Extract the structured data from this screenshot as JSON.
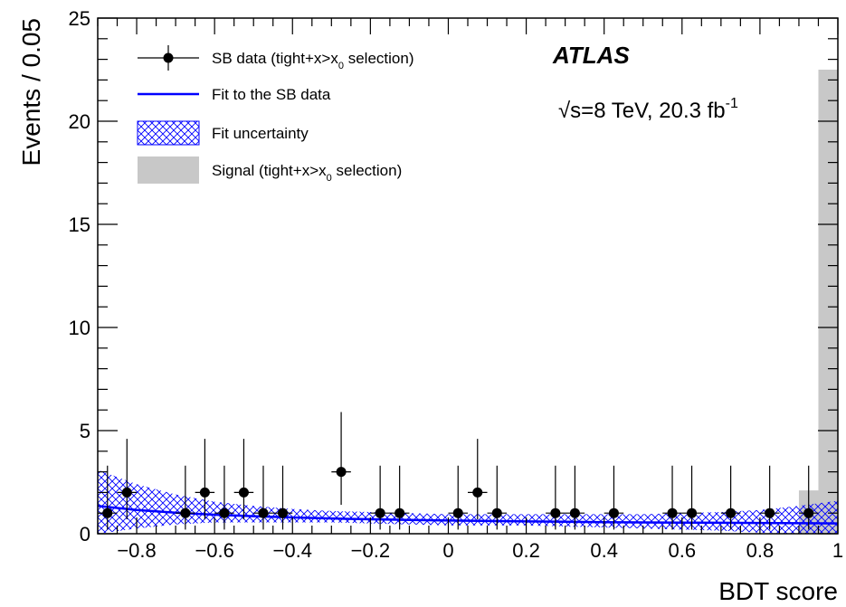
{
  "chart_data": {
    "type": "scatter",
    "xlabel": "BDT score",
    "ylabel": "Events / 0.05",
    "xlim": [
      -0.9,
      1.0
    ],
    "ylim": [
      0,
      25
    ],
    "x_ticks": [
      -0.8,
      -0.6,
      -0.4,
      -0.2,
      0,
      0.2,
      0.4,
      0.6,
      0.8,
      1
    ],
    "x_tick_labels": [
      "−0.8",
      "−0.6",
      "−0.4",
      "−0.2",
      "0",
      "0.2",
      "0.4",
      "0.6",
      "0.8",
      "1"
    ],
    "y_ticks": [
      0,
      5,
      10,
      15,
      20,
      25
    ],
    "y_tick_labels": [
      "0",
      "5",
      "10",
      "15",
      "20",
      "25"
    ],
    "grid": false,
    "legend_position": "top-left",
    "annotations": {
      "experiment": "ATLAS",
      "sqrt_symbol": "√",
      "energy_text": "s=8 TeV, 20.3 fb",
      "lumi_exponent": "-1"
    },
    "legend": [
      {
        "kind": "points",
        "text": "SB data (tight+x>x",
        "sub": "0",
        "text_after": " selection)"
      },
      {
        "kind": "line",
        "text": "Fit to the SB data"
      },
      {
        "kind": "band",
        "text": "Fit uncertainty"
      },
      {
        "kind": "hist",
        "text": "Signal (tight+x>x",
        "sub": "0",
        "text_after": " selection)"
      }
    ],
    "series": [
      {
        "name": "SB data (tight+x>x0 selection)",
        "type": "points",
        "color": "#000000",
        "bin_width": 0.05,
        "x": [
          -0.875,
          -0.825,
          -0.675,
          -0.625,
          -0.575,
          -0.525,
          -0.475,
          -0.425,
          -0.275,
          -0.175,
          -0.125,
          0.025,
          0.075,
          0.125,
          0.275,
          0.325,
          0.425,
          0.575,
          0.625,
          0.725,
          0.825,
          0.925
        ],
        "y": [
          1,
          2,
          1,
          2,
          1,
          2,
          1,
          1,
          3,
          1,
          1,
          1,
          2,
          1,
          1,
          1,
          1,
          1,
          1,
          1,
          1,
          1
        ],
        "err_hi": [
          2.3,
          2.6,
          2.3,
          2.6,
          2.3,
          2.6,
          2.3,
          2.3,
          2.9,
          2.3,
          2.3,
          2.3,
          2.6,
          2.3,
          2.3,
          2.3,
          2.3,
          2.3,
          2.3,
          2.3,
          2.3,
          2.3
        ],
        "err_lo": [
          0.8,
          1.3,
          0.8,
          1.3,
          0.8,
          1.3,
          0.8,
          0.8,
          1.6,
          0.8,
          0.8,
          0.8,
          1.3,
          0.8,
          0.8,
          0.8,
          0.8,
          0.8,
          0.8,
          0.8,
          0.8,
          0.8
        ]
      },
      {
        "name": "Fit to the SB data",
        "type": "line",
        "color": "#0000ff",
        "x": [
          -0.9,
          -0.8,
          -0.7,
          -0.6,
          -0.5,
          -0.4,
          -0.3,
          -0.2,
          -0.1,
          0.0,
          0.1,
          0.2,
          0.3,
          0.4,
          0.5,
          0.6,
          0.7,
          0.8,
          0.9,
          1.0
        ],
        "y": [
          1.35,
          1.15,
          1.02,
          0.92,
          0.85,
          0.79,
          0.74,
          0.7,
          0.67,
          0.64,
          0.62,
          0.6,
          0.58,
          0.56,
          0.55,
          0.54,
          0.53,
          0.52,
          0.51,
          0.5
        ]
      },
      {
        "name": "Fit uncertainty",
        "type": "band",
        "color": "#0000ff",
        "x": [
          -0.9,
          -0.8,
          -0.7,
          -0.6,
          -0.5,
          -0.4,
          -0.3,
          -0.2,
          -0.1,
          0.0,
          0.1,
          0.2,
          0.3,
          0.4,
          0.5,
          0.6,
          0.7,
          0.8,
          0.9,
          1.0
        ],
        "y_low": [
          0.0,
          0.25,
          0.45,
          0.55,
          0.55,
          0.55,
          0.55,
          0.5,
          0.45,
          0.4,
          0.4,
          0.4,
          0.35,
          0.3,
          0.25,
          0.2,
          0.15,
          0.05,
          0.0,
          0.0
        ],
        "y_high": [
          3.1,
          2.4,
          1.9,
          1.55,
          1.35,
          1.2,
          1.1,
          1.05,
          1.0,
          0.95,
          0.95,
          0.95,
          0.95,
          0.95,
          0.95,
          1.0,
          1.05,
          1.15,
          1.35,
          1.6
        ]
      },
      {
        "name": "Signal (tight+x>x0 selection)",
        "type": "hist",
        "color": "#c8c8c8",
        "bin_edges": [
          0.9,
          0.95,
          1.0
        ],
        "values": [
          2.1,
          22.5
        ]
      }
    ]
  }
}
